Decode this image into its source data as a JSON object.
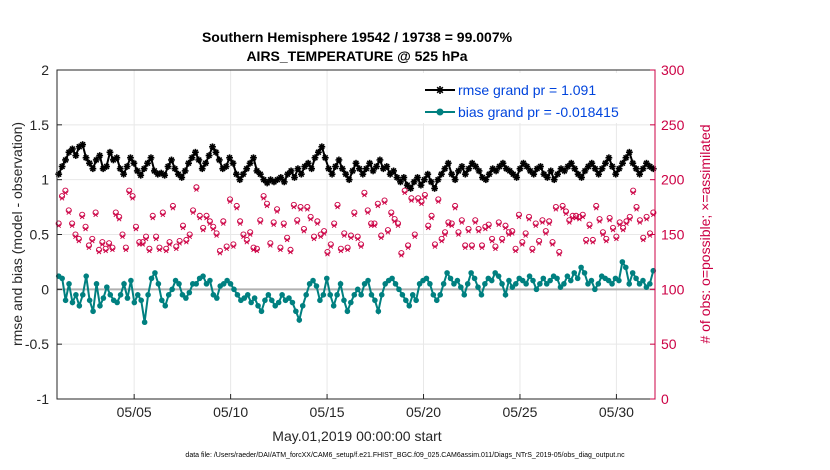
{
  "chart_data": {
    "type": "line",
    "title": [
      "Southern Hemisphere 19542 / 19738 = 99.007%",
      "AIRS_TEMPERATURE @ 525 hPa"
    ],
    "xlabel": "May.01,2019 00:00:00 start",
    "ylabel_left": "rmse and bias (model - observation)",
    "ylabel_right": "# of obs: o=possible; ×=assimilated",
    "footnote": "data file: /Users/raeder/DAI/ATM_forcXX/CAM6_setup/f.e21.FHIST_BGC.f09_025.CAM6assim.011/Diags_NTrS_2019-05/obs_diag_output.nc",
    "x_range_days": [
      1,
      32
    ],
    "x_ticks": [
      {
        "day": 5,
        "label": "05/05"
      },
      {
        "day": 10,
        "label": "05/10"
      },
      {
        "day": 15,
        "label": "05/15"
      },
      {
        "day": 20,
        "label": "05/20"
      },
      {
        "day": 25,
        "label": "05/25"
      },
      {
        "day": 30,
        "label": "05/30"
      }
    ],
    "ylim_left": [
      -1,
      2
    ],
    "yticks_left": [
      "-1",
      "-0.5",
      "0",
      "0.5",
      "1",
      "1.5",
      "2"
    ],
    "ylim_right": [
      0,
      300
    ],
    "yticks_right": [
      "0",
      "50",
      "100",
      "150",
      "200",
      "250",
      "300"
    ],
    "legend_position": "top-right",
    "colors": {
      "rmse": "#000000",
      "bias": "#008080",
      "obs": "#cc0044",
      "zero_line": "#b0b0b0",
      "grid": "#e8e8e8",
      "legend_text": "#0044dd"
    },
    "series": [
      {
        "name": "rmse grand pr = 1.091",
        "marker": "star",
        "values": [
          1.05,
          1.12,
          1.18,
          1.25,
          1.28,
          1.22,
          1.3,
          1.32,
          1.2,
          1.15,
          1.1,
          1.18,
          1.22,
          1.1,
          1.12,
          1.25,
          1.18,
          1.2,
          1.1,
          1.05,
          1.12,
          1.2,
          1.15,
          1.08,
          1.04,
          1.1,
          1.15,
          1.2,
          1.08,
          1.05,
          1.06,
          1.04,
          1.12,
          1.18,
          1.1,
          1.05,
          1.02,
          1.08,
          1.15,
          1.2,
          1.25,
          1.18,
          1.1,
          1.15,
          1.22,
          1.3,
          1.25,
          1.18,
          1.1,
          1.12,
          1.2,
          1.15,
          1.05,
          1.0,
          1.05,
          1.1,
          1.15,
          1.2,
          1.08,
          1.05,
          1.0,
          0.97,
          1.0,
          0.98,
          1.0,
          1.02,
          0.98,
          1.05,
          1.08,
          1.02,
          1.1,
          1.05,
          1.12,
          1.15,
          1.1,
          1.2,
          1.25,
          1.3,
          1.2,
          1.1,
          1.05,
          1.12,
          1.18,
          1.1,
          1.05,
          1.0,
          1.08,
          1.15,
          1.1,
          1.05,
          1.1,
          1.15,
          1.08,
          1.12,
          1.18,
          1.1,
          1.12,
          1.05,
          1.08,
          1.02,
          0.98,
          1.02,
          0.95,
          0.92,
          0.98,
          1.02,
          0.95,
          1.0,
          1.05,
          0.98,
          0.92,
          1.0,
          1.05,
          1.1,
          1.15,
          1.05,
          1.0,
          1.08,
          1.12,
          1.05,
          1.1,
          1.15,
          1.12,
          1.08,
          1.02,
          1.0,
          1.05,
          1.1,
          1.08,
          1.12,
          1.15,
          1.1,
          1.08,
          1.05,
          1.02,
          1.1,
          1.15,
          1.12,
          1.08,
          1.05,
          1.1,
          1.12,
          1.05,
          1.02,
          1.08,
          1.0,
          1.05,
          1.1,
          1.08,
          1.12,
          1.15,
          1.1,
          1.05,
          1.02,
          1.08,
          1.12,
          1.15,
          1.1,
          1.05,
          1.1,
          1.15,
          1.2,
          1.12,
          1.05,
          1.1,
          1.15,
          1.2,
          1.25,
          1.15,
          1.1,
          1.05,
          1.1,
          1.15,
          1.12,
          1.1
        ]
      },
      {
        "name": "bias grand pr = -0.018415",
        "marker": "circle",
        "values": [
          0.12,
          0.1,
          -0.1,
          0.05,
          -0.12,
          -0.05,
          -0.15,
          -0.05,
          0.12,
          -0.1,
          -0.2,
          0.05,
          -0.15,
          -0.08,
          0.02,
          -0.05,
          -0.1,
          -0.12,
          -0.05,
          0.05,
          -0.08,
          0.08,
          -0.12,
          -0.05,
          -0.1,
          -0.3,
          -0.05,
          0.1,
          0.15,
          0.05,
          -0.1,
          -0.15,
          -0.05,
          0.0,
          0.08,
          0.05,
          -0.05,
          -0.08,
          -0.03,
          0.05,
          0.05,
          0.1,
          0.12,
          0.05,
          0.08,
          -0.05,
          -0.08,
          0.03,
          0.05,
          0.08,
          0.05,
          0.0,
          -0.05,
          -0.1,
          -0.08,
          -0.05,
          -0.12,
          -0.08,
          -0.15,
          -0.2,
          -0.1,
          -0.05,
          -0.1,
          -0.15,
          -0.12,
          -0.05,
          -0.1,
          -0.08,
          -0.12,
          -0.2,
          -0.28,
          -0.15,
          -0.05,
          0.05,
          0.08,
          0.03,
          -0.1,
          -0.05,
          0.1,
          -0.05,
          -0.15,
          -0.05,
          0.05,
          -0.1,
          -0.2,
          -0.12,
          -0.05,
          0.0,
          -0.05,
          0.05,
          0.08,
          -0.05,
          -0.1,
          -0.2,
          -0.05,
          0.05,
          0.08,
          0.1,
          0.05,
          0.0,
          -0.05,
          -0.1,
          -0.15,
          -0.05,
          -0.1,
          0.05,
          0.08,
          0.1,
          0.05,
          -0.05,
          -0.1,
          -0.05,
          0.05,
          0.15,
          0.1,
          0.05,
          0.08,
          0.02,
          -0.05,
          0.05,
          0.15,
          0.1,
          0.02,
          -0.05,
          0.05,
          0.1,
          0.08,
          0.15,
          0.12,
          0.05,
          -0.05,
          0.08,
          0.02,
          0.05,
          0.1,
          0.08,
          0.05,
          0.12,
          0.08,
          0.0,
          0.05,
          0.1,
          0.05,
          0.08,
          0.12,
          0.1,
          0.02,
          0.05,
          0.12,
          0.08,
          0.15,
          0.1,
          0.2,
          0.15,
          0.05,
          0.08,
          0.0,
          0.05,
          0.12,
          0.1,
          0.08,
          0.05,
          0.1,
          0.08,
          0.25,
          0.2,
          0.05,
          0.15,
          0.1,
          0.05,
          0.08,
          0.02,
          0.05,
          0.17
        ]
      },
      {
        "name": "obs possible",
        "marker": "o",
        "axis": "right",
        "values": [
          160,
          185,
          190,
          172,
          160,
          150,
          146,
          168,
          157,
          140,
          146,
          170,
          136,
          143,
          137,
          142,
          138,
          170,
          166,
          150,
          138,
          190,
          185,
          157,
          143,
          143,
          148,
          137,
          167,
          148,
          138,
          170,
          137,
          143,
          176,
          139,
          144,
          158,
          145,
          150,
          172,
          193,
          167,
          156,
          167,
          162,
          157,
          151,
          135,
          162,
          139,
          182,
          141,
          176,
          162,
          150,
          145,
          152,
          138,
          137,
          163,
          185,
          178,
          142,
          161,
          173,
          138,
          160,
          147,
          136,
          177,
          163,
          175,
          155,
          175,
          166,
          148,
          162,
          150,
          153,
          134,
          141,
          160,
          177,
          137,
          151,
          138,
          149,
          170,
          148,
          141,
          188,
          172,
          160,
          160,
          178,
          149,
          181,
          154,
          170,
          164,
          160,
          133,
          190,
          140,
          183,
          150,
          183,
          180,
          186,
          158,
          167,
          141,
          182,
          146,
          152,
          161,
          160,
          176,
          152,
          163,
          140,
          155,
          140,
          163,
          155,
          140,
          157,
          159,
          146,
          139,
          161,
          146,
          158,
          152,
          153,
          137,
          168,
          143,
          151,
          166,
          137,
          160,
          144,
          163,
          153,
          162,
          143,
          175,
          134,
          176,
          171,
          163,
          167,
          167,
          166,
          168,
          145,
          159,
          145,
          176,
          164,
          152,
          146,
          165,
          156,
          148,
          161,
          156,
          162,
          166,
          190,
          175,
          163,
          147,
          166,
          151,
          170
        ]
      },
      {
        "name": "obs assimilated",
        "marker": "x",
        "axis": "right",
        "values": [
          158,
          183,
          188,
          170,
          158,
          148,
          144,
          166,
          155,
          138,
          144,
          168,
          134,
          141,
          135,
          140,
          136,
          168,
          164,
          148,
          136,
          188,
          183,
          155,
          141,
          141,
          146,
          135,
          165,
          146,
          136,
          168,
          135,
          141,
          174,
          137,
          142,
          156,
          143,
          148,
          170,
          191,
          165,
          154,
          165,
          160,
          155,
          149,
          133,
          160,
          137,
          180,
          139,
          174,
          160,
          148,
          143,
          150,
          136,
          135,
          161,
          183,
          176,
          140,
          159,
          171,
          136,
          158,
          145,
          134,
          175,
          161,
          173,
          153,
          173,
          164,
          146,
          160,
          148,
          151,
          132,
          139,
          158,
          175,
          135,
          149,
          136,
          147,
          168,
          146,
          139,
          186,
          170,
          158,
          158,
          176,
          147,
          179,
          152,
          168,
          162,
          158,
          131,
          188,
          138,
          181,
          148,
          181,
          178,
          184,
          156,
          165,
          139,
          180,
          144,
          150,
          159,
          158,
          174,
          150,
          161,
          138,
          153,
          138,
          161,
          153,
          138,
          155,
          157,
          144,
          137,
          159,
          144,
          156,
          150,
          151,
          135,
          166,
          141,
          149,
          164,
          135,
          158,
          142,
          161,
          151,
          160,
          141,
          173,
          132,
          174,
          169,
          161,
          165,
          165,
          164,
          166,
          143,
          157,
          143,
          174,
          162,
          150,
          144,
          163,
          154,
          146,
          159,
          154,
          160,
          164,
          188,
          173,
          161,
          145,
          164,
          149,
          168
        ]
      }
    ]
  }
}
